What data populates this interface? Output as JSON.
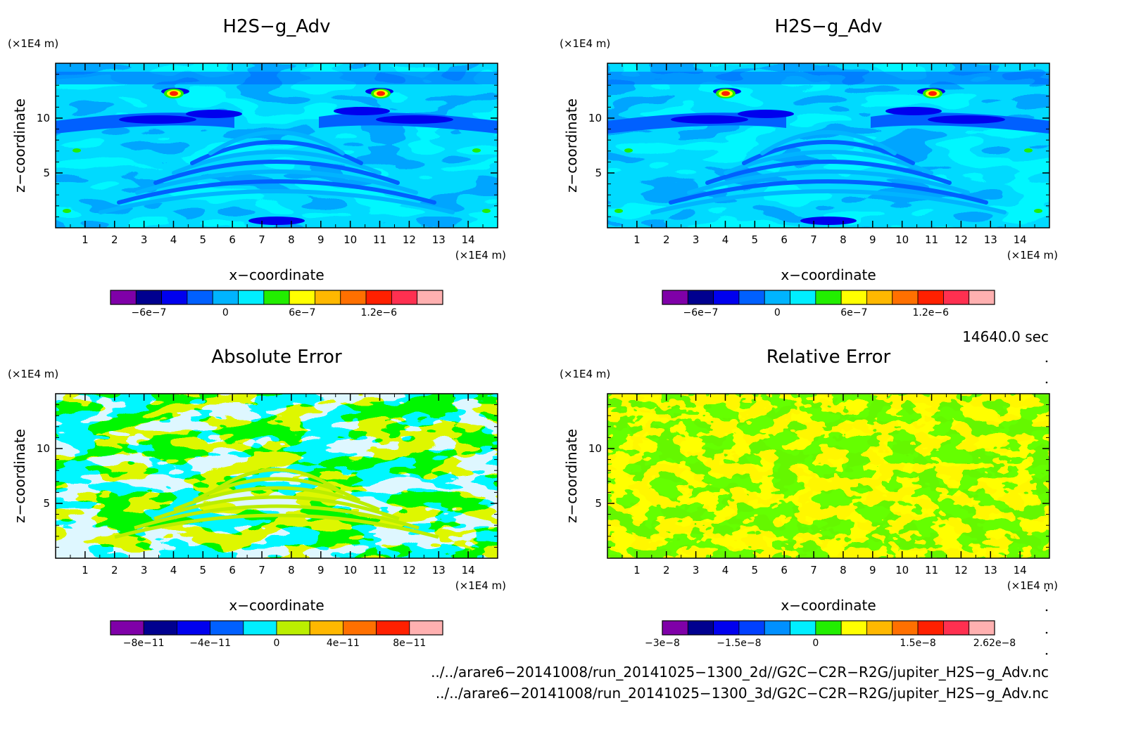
{
  "chart_data": [
    {
      "type": "heatmap",
      "title": "H2S−g_Adv",
      "xlabel": "x−coordinate",
      "ylabel": "z−coordinate",
      "x_unit": "(×1E4 m)",
      "y_unit": "(×1E4 m)",
      "xlim": [
        0,
        15
      ],
      "ylim": [
        0,
        15
      ],
      "x_ticks": [
        1,
        2,
        3,
        4,
        5,
        6,
        7,
        8,
        9,
        10,
        11,
        12,
        13,
        14
      ],
      "y_ticks": [
        5,
        10
      ],
      "pattern": "adv",
      "colorbar": {
        "colors": [
          "#7f00a8",
          "#00008f",
          "#0000ee",
          "#0060ff",
          "#00b4ff",
          "#00eeff",
          "#22ee00",
          "#ffff00",
          "#ffb800",
          "#ff7000",
          "#ff2000",
          "#ff3050",
          "#ffb0b0"
        ],
        "labels": [
          "−6e−7",
          "0",
          "6e−7",
          "1.2e−6"
        ],
        "label_index": [
          1.5,
          4.5,
          7.5,
          10.5
        ]
      }
    },
    {
      "type": "heatmap",
      "title": "H2S−g_Adv",
      "xlabel": "x−coordinate",
      "ylabel": "z−coordinate",
      "x_unit": "(×1E4 m)",
      "y_unit": "(×1E4 m)",
      "xlim": [
        0,
        15
      ],
      "ylim": [
        0,
        15
      ],
      "x_ticks": [
        1,
        2,
        3,
        4,
        5,
        6,
        7,
        8,
        9,
        10,
        11,
        12,
        13,
        14
      ],
      "y_ticks": [
        5,
        10
      ],
      "pattern": "adv",
      "colorbar": {
        "colors": [
          "#7f00a8",
          "#00008f",
          "#0000ee",
          "#0060ff",
          "#00b4ff",
          "#00eeff",
          "#22ee00",
          "#ffff00",
          "#ffb800",
          "#ff7000",
          "#ff2000",
          "#ff3050",
          "#ffb0b0"
        ],
        "labels": [
          "−6e−7",
          "0",
          "6e−7",
          "1.2e−6"
        ],
        "label_index": [
          1.5,
          4.5,
          7.5,
          10.5
        ]
      }
    },
    {
      "type": "heatmap",
      "title": "Absolute Error",
      "xlabel": "x−coordinate",
      "ylabel": "z−coordinate",
      "x_unit": "(×1E4 m)",
      "y_unit": "(×1E4 m)",
      "xlim": [
        0,
        15
      ],
      "ylim": [
        0,
        15
      ],
      "x_ticks": [
        1,
        2,
        3,
        4,
        5,
        6,
        7,
        8,
        9,
        10,
        11,
        12,
        13,
        14
      ],
      "y_ticks": [
        5,
        10
      ],
      "pattern": "abs",
      "colorbar": {
        "colors": [
          "#7f00a8",
          "#00008f",
          "#0000ee",
          "#0060ff",
          "#00eeff",
          "#bbee00",
          "#ffb800",
          "#ff7000",
          "#ff2000",
          "#ffb0b0"
        ],
        "labels": [
          "−8e−11",
          "−4e−11",
          "0",
          "4e−11",
          "8e−11"
        ],
        "label_index": [
          1,
          3,
          5,
          7,
          9
        ]
      }
    },
    {
      "type": "heatmap",
      "title": "Relative Error",
      "xlabel": "x−coordinate",
      "ylabel": "z−coordinate",
      "x_unit": "(×1E4 m)",
      "y_unit": "(×1E4 m)",
      "xlim": [
        0,
        15
      ],
      "ylim": [
        0,
        15
      ],
      "x_ticks": [
        1,
        2,
        3,
        4,
        5,
        6,
        7,
        8,
        9,
        10,
        11,
        12,
        13,
        14
      ],
      "y_ticks": [
        5,
        10
      ],
      "pattern": "rel",
      "colorbar": {
        "colors": [
          "#7f00a8",
          "#00008f",
          "#0000ee",
          "#0040ff",
          "#0090ff",
          "#00eeff",
          "#22ee00",
          "#ffff00",
          "#ffb800",
          "#ff7000",
          "#ff2000",
          "#ff3050",
          "#ffb0b0"
        ],
        "labels": [
          "−3e−8",
          "−1.5e−8",
          "0",
          "1.5e−8",
          "2.62e−8"
        ],
        "label_index": [
          0,
          3,
          6,
          10,
          13
        ]
      }
    }
  ],
  "time_label": "14640.0 sec",
  "file_paths": [
    "../../arare6−20141008/run_20141025−1300_2d//G2C−C2R−R2G/jupiter_H2S−g_Adv.nc",
    "../../arare6−20141008/run_20141025−1300_3d/G2C−C2R−R2G/jupiter_H2S−g_Adv.nc"
  ]
}
